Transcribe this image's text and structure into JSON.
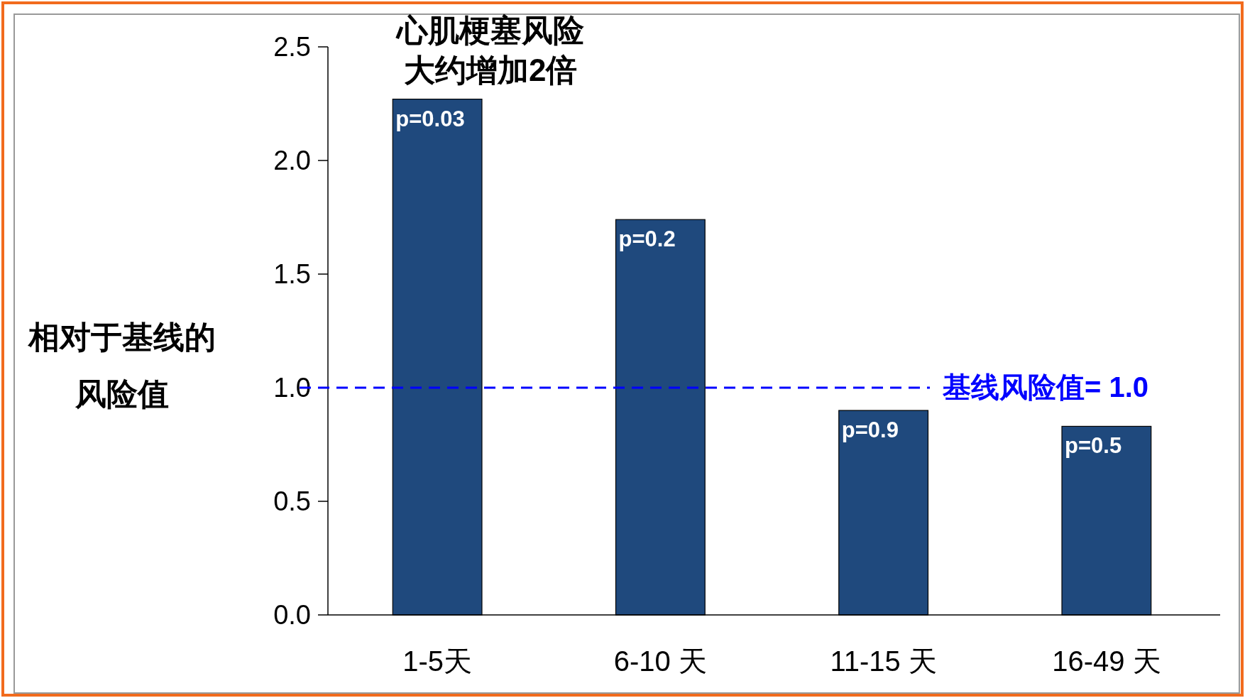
{
  "chart_data": {
    "type": "bar",
    "ylabel": "相对于基线的风险值",
    "categories": [
      "1-5天",
      "6-10 天",
      "11-15 天",
      "16-49 天"
    ],
    "values": [
      2.27,
      1.74,
      0.9,
      0.83
    ],
    "color": "#1f497d",
    "ylim": [
      0,
      2.5
    ],
    "yticks": [
      {
        "value": 0,
        "label": "0.0"
      },
      {
        "value": 0.5,
        "label": "0.5"
      },
      {
        "value": 1,
        "label": "1.0"
      },
      {
        "value": 1.5,
        "label": "1.5"
      },
      {
        "value": 2,
        "label": "2.0"
      },
      {
        "value": 2.5,
        "label": "2.5"
      }
    ],
    "grid": false,
    "ref_lines": [
      {
        "axis": "y",
        "value": 1.0,
        "label": "基线风险值= 1.0",
        "color": "#0000ff",
        "line_style": "dashed"
      }
    ],
    "annotations": [
      {
        "text": "心肌梗塞风险大约增加2倍",
        "x": "1-5天",
        "y": 2.27
      },
      {
        "text": "p=0.03",
        "x": "1-5天",
        "y": 2.27
      },
      {
        "text": "p=0.2",
        "x": "6-10 天",
        "y": 1.74
      },
      {
        "text": "p=0.9",
        "x": "11-15 天",
        "y": 0.9
      },
      {
        "text": "p=0.5",
        "x": "16-49 天",
        "y": 0.83
      }
    ]
  }
}
